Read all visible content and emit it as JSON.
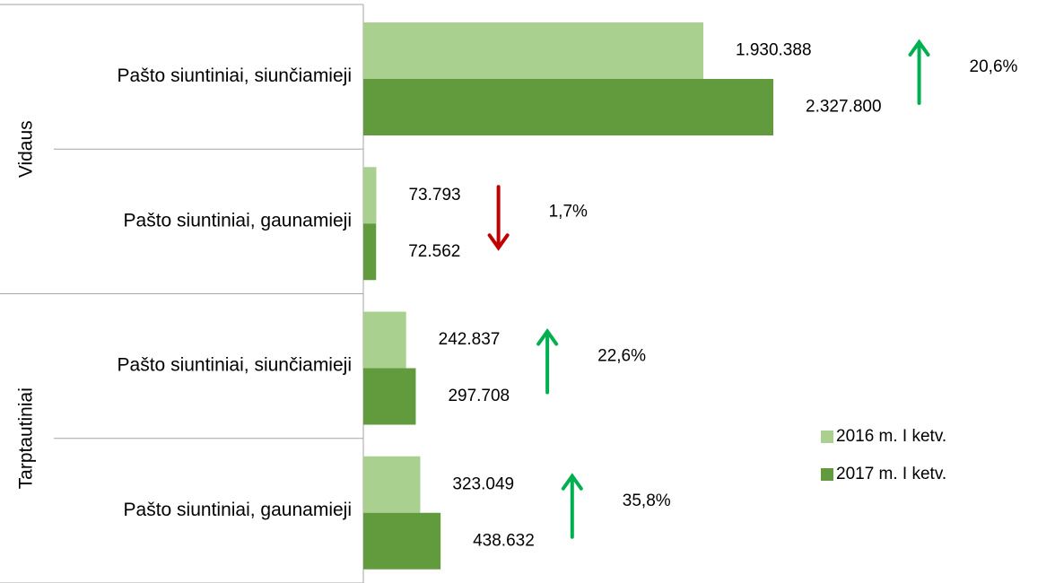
{
  "chart_data": {
    "type": "bar",
    "orientation": "horizontal",
    "groups": [
      "Vidaus",
      "Tarptautiniai"
    ],
    "categories": [
      "Pašto siuntiniai, siunčiamieji",
      "Pašto siuntiniai, gaunamieji",
      "Pašto siuntiniai, siunčiamieji",
      "Pašto siuntiniai, gaunamieji"
    ],
    "series": [
      {
        "name": "2016 m. I ketv.",
        "color": "#a9d08e",
        "values": [
          1930388,
          73793,
          242837,
          323049
        ],
        "value_labels": [
          "1.930.388",
          "73.793",
          "242.837",
          "323.049"
        ]
      },
      {
        "name": "2017 m. I ketv.",
        "color": "#619b3d",
        "values": [
          2327800,
          72562,
          297708,
          438632
        ],
        "value_labels": [
          "2.327.800",
          "72.562",
          "297.708",
          "438.632"
        ]
      }
    ],
    "annotations": [
      {
        "text": "20,6%",
        "direction": "up",
        "color": "#00b050"
      },
      {
        "text": "1,7%",
        "direction": "down",
        "color": "#c00000"
      },
      {
        "text": "22,6%",
        "direction": "up",
        "color": "#00b050"
      },
      {
        "text": "35,8%",
        "direction": "up",
        "color": "#00b050"
      }
    ],
    "xlim": [
      0,
      3000000
    ],
    "legend": "right"
  }
}
